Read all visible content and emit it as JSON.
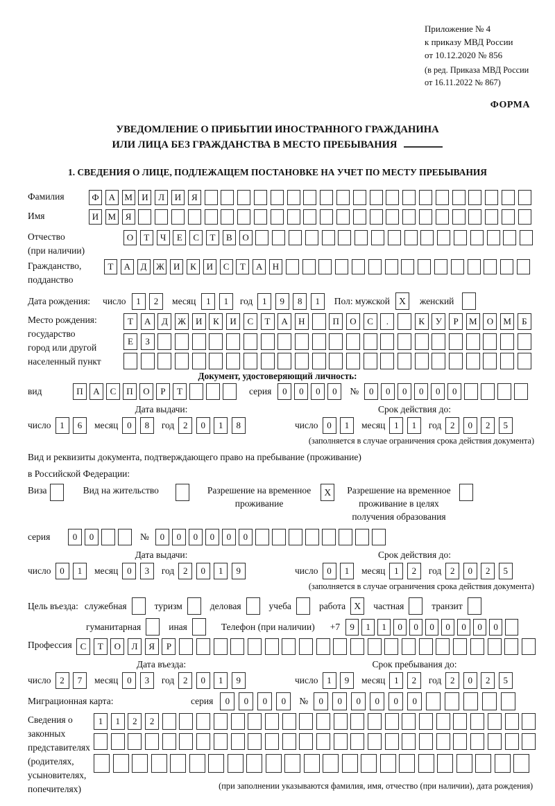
{
  "header": {
    "appendix_lines": [
      "Приложение № 4",
      "к приказу МВД России",
      "от 10.12.2020 № 856"
    ],
    "edition_lines": [
      "(в ред. Приказа МВД России",
      "от 16.11.2022 № 867)"
    ],
    "form_label": "ФОРМА"
  },
  "title": {
    "line1": "УВЕДОМЛЕНИЕ О ПРИБЫТИИ ИНОСТРАННОГО ГРАЖДАНИНА",
    "line2": "ИЛИ ЛИЦА БЕЗ ГРАЖДАНСТВА В МЕСТО ПРЕБЫВАНИЯ",
    "section_heading": "1. СВЕДЕНИЯ О ЛИЦЕ, ПОДЛЕЖАЩЕМ ПОСТАНОВКЕ НА УЧЕТ ПО МЕСТУ ПРЕБЫВАНИЯ"
  },
  "surname": {
    "label": "Фамилия",
    "value": "ФАМИЛИЯ",
    "cells": 27
  },
  "given_name": {
    "label": "Имя",
    "value": "ИМЯ",
    "cells": 27
  },
  "patronymic": {
    "label_lines": [
      "Отчество",
      "(при наличии)"
    ],
    "value": "ОТЧЕСТВО",
    "cells": 25
  },
  "citizenship": {
    "label_lines": [
      "Гражданство,",
      "подданство"
    ],
    "value": "ТАДЖИКИСТАН",
    "cells": 26
  },
  "birth_date": {
    "label": "Дата рождения:",
    "day_label": "число",
    "day": {
      "value": "12",
      "cells": 2
    },
    "month_label": "месяц",
    "month": {
      "value": "11",
      "cells": 2
    },
    "year_label": "год",
    "year": {
      "value": "1981",
      "cells": 4
    },
    "sex_label": "Пол: мужской",
    "male_mark": "X",
    "female_label": "женский",
    "female_mark": ""
  },
  "birth_place": {
    "label_lines": [
      "Место рождения:",
      "государство",
      "город или другой",
      "населенный пункт"
    ],
    "row1": {
      "value": "ТАДЖИКИСТАН ПОС. КУРМОМБ",
      "cells": 24
    },
    "row2": {
      "value": "ЕЗ",
      "cells": 24
    },
    "row3": {
      "value": "",
      "cells": 24
    }
  },
  "identity_doc": {
    "heading": "Документ, удостоверяющий личность:",
    "kind_label": "вид",
    "kind": {
      "value": "ПАСПОРТ",
      "cells": 10
    },
    "series_label": "серия",
    "series": {
      "value": "0000",
      "cells": 4
    },
    "number_label": "№",
    "number": {
      "value": "000000",
      "cells": 10
    },
    "issue": {
      "title": "Дата выдачи:",
      "day_label": "число",
      "day": {
        "value": "16",
        "cells": 2
      },
      "month_label": "месяц",
      "month": {
        "value": "08",
        "cells": 2
      },
      "year_label": "год",
      "year": {
        "value": "2018",
        "cells": 4
      }
    },
    "valid": {
      "title": "Срок действия до:",
      "day_label": "число",
      "day": {
        "value": "01",
        "cells": 2
      },
      "month_label": "месяц",
      "month": {
        "value": "11",
        "cells": 2
      },
      "year_label": "год",
      "year": {
        "value": "2025",
        "cells": 4
      }
    },
    "note": "(заполняется в случае ограничения срока действия документа)"
  },
  "residence_doc": {
    "intro_line1": "Вид и реквизиты документа, подтверждающего право на пребывание (проживание)",
    "intro_line2": "в Российской Федерации:",
    "options": [
      {
        "label_lines": [
          "Виза"
        ],
        "mark": ""
      },
      {
        "label_lines": [
          "Вид на жительство"
        ],
        "mark": ""
      },
      {
        "label_lines": [
          "Разрешение на временное",
          "проживание"
        ],
        "mark": "X"
      },
      {
        "label_lines": [
          "Разрешение на временное",
          "проживание в целях",
          "получения образования"
        ],
        "mark": ""
      }
    ],
    "series_label": "серия",
    "series": {
      "value": "00",
      "cells": 4
    },
    "number_label": "№",
    "number": {
      "value": "000000",
      "cells": 14
    },
    "issue": {
      "title": "Дата выдачи:",
      "day_label": "число",
      "day": {
        "value": "01",
        "cells": 2
      },
      "month_label": "месяц",
      "month": {
        "value": "03",
        "cells": 2
      },
      "year_label": "год",
      "year": {
        "value": "2019",
        "cells": 4
      }
    },
    "valid": {
      "title": "Срок действия до:",
      "day_label": "число",
      "day": {
        "value": "01",
        "cells": 2
      },
      "month_label": "месяц",
      "month": {
        "value": "12",
        "cells": 2
      },
      "year_label": "год",
      "year": {
        "value": "2025",
        "cells": 4
      }
    },
    "note": "(заполняется в случае ограничения срока действия документа)"
  },
  "purpose": {
    "label": "Цель въезда:",
    "items": [
      {
        "name": "official",
        "label": "служебная",
        "mark": ""
      },
      {
        "name": "tourism",
        "label": "туризм",
        "mark": ""
      },
      {
        "name": "business",
        "label": "деловая",
        "mark": ""
      },
      {
        "name": "study",
        "label": "учеба",
        "mark": ""
      },
      {
        "name": "work",
        "label": "работа",
        "mark": "X"
      },
      {
        "name": "private",
        "label": "частная",
        "mark": ""
      },
      {
        "name": "transit",
        "label": "транзит",
        "mark": ""
      }
    ],
    "items2": [
      {
        "name": "humanitarian",
        "label": "гуманитарная",
        "mark": ""
      },
      {
        "name": "other",
        "label": "иная",
        "mark": ""
      }
    ],
    "phone_label": "Телефон (при наличии)",
    "phone_prefix": "+7",
    "phone": {
      "value": "9110000000",
      "cells": 11
    }
  },
  "profession": {
    "label": "Профессия",
    "value": "СТОЛЯР",
    "cells": 27
  },
  "entry": {
    "issue": {
      "title": "Дата въезда:",
      "day_label": "число",
      "day": {
        "value": "27",
        "cells": 2
      },
      "month_label": "месяц",
      "month": {
        "value": "03",
        "cells": 2
      },
      "year_label": "год",
      "year": {
        "value": "2019",
        "cells": 4
      }
    },
    "valid": {
      "title": "Срок пребывания до:",
      "day_label": "число",
      "day": {
        "value": "19",
        "cells": 2
      },
      "month_label": "месяц",
      "month": {
        "value": "12",
        "cells": 2
      },
      "year_label": "год",
      "year": {
        "value": "2025",
        "cells": 4
      }
    }
  },
  "migration_card": {
    "label": "Миграционная карта:",
    "series_label": "серия",
    "series": {
      "value": "0000",
      "cells": 4
    },
    "number_label": "№",
    "number": {
      "value": "000000",
      "cells": 11
    }
  },
  "representatives": {
    "label_lines": [
      "Сведения о",
      "законных",
      "представителях",
      "(родителях,",
      "усыновителях,",
      "попечителях)"
    ],
    "row1": {
      "value": "1122",
      "cells": 26
    },
    "row2": {
      "value": "",
      "cells": 26
    },
    "row3": {
      "value": "",
      "cells": 23
    },
    "note": "(при заполнении указываются фамилия, имя, отчество (при наличии), дата рождения)"
  }
}
